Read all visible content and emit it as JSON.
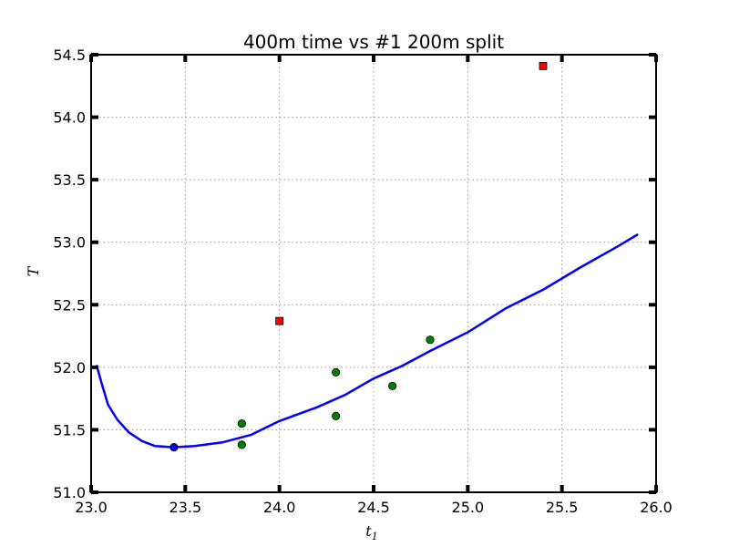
{
  "chart_data": {
    "type": "scatter",
    "title": "400m time vs #1 200m split",
    "xlabel": "t",
    "xlabel_subscript": "1",
    "ylabel": "T",
    "xlim": [
      23.0,
      26.0
    ],
    "ylim": [
      51.0,
      54.5
    ],
    "xticks": [
      23.0,
      23.5,
      24.0,
      24.5,
      25.0,
      25.5,
      26.0
    ],
    "xtick_labels": [
      "23.0",
      "23.5",
      "24.0",
      "24.5",
      "25.0",
      "25.5",
      "26.0"
    ],
    "yticks": [
      51.0,
      51.5,
      52.0,
      52.5,
      53.0,
      53.5,
      54.0,
      54.5
    ],
    "ytick_labels": [
      "51.0",
      "51.5",
      "52.0",
      "52.5",
      "53.0",
      "53.5",
      "54.0",
      "54.5"
    ],
    "grid": true,
    "series": [
      {
        "kind": "scatter",
        "marker": "circle",
        "color": "#008000",
        "points": [
          {
            "x": 23.8,
            "y": 51.55
          },
          {
            "x": 23.8,
            "y": 51.38
          },
          {
            "x": 24.3,
            "y": 51.96
          },
          {
            "x": 24.3,
            "y": 51.61
          },
          {
            "x": 24.6,
            "y": 51.85
          },
          {
            "x": 24.8,
            "y": 52.22
          }
        ]
      },
      {
        "kind": "scatter",
        "marker": "square",
        "color": "#ff0000",
        "points": [
          {
            "x": 24.0,
            "y": 52.37
          },
          {
            "x": 25.4,
            "y": 54.41
          }
        ]
      },
      {
        "kind": "scatter",
        "marker": "circle",
        "color": "#0000ff",
        "points": [
          {
            "x": 23.44,
            "y": 51.36
          }
        ]
      },
      {
        "kind": "line",
        "color": "#0000ff",
        "points": [
          {
            "x": 23.03,
            "y": 52.01
          },
          {
            "x": 23.06,
            "y": 51.85
          },
          {
            "x": 23.09,
            "y": 51.7
          },
          {
            "x": 23.14,
            "y": 51.58
          },
          {
            "x": 23.2,
            "y": 51.48
          },
          {
            "x": 23.27,
            "y": 51.41
          },
          {
            "x": 23.34,
            "y": 51.37
          },
          {
            "x": 23.44,
            "y": 51.36
          },
          {
            "x": 23.55,
            "y": 51.37
          },
          {
            "x": 23.7,
            "y": 51.4
          },
          {
            "x": 23.85,
            "y": 51.46
          },
          {
            "x": 24.0,
            "y": 51.57
          },
          {
            "x": 24.2,
            "y": 51.68
          },
          {
            "x": 24.35,
            "y": 51.78
          },
          {
            "x": 24.5,
            "y": 51.91
          },
          {
            "x": 24.65,
            "y": 52.01
          },
          {
            "x": 24.8,
            "y": 52.13
          },
          {
            "x": 25.0,
            "y": 52.28
          },
          {
            "x": 25.2,
            "y": 52.47
          },
          {
            "x": 25.4,
            "y": 52.62
          },
          {
            "x": 25.6,
            "y": 52.8
          },
          {
            "x": 25.8,
            "y": 52.97
          },
          {
            "x": 25.9,
            "y": 53.06
          }
        ]
      }
    ]
  }
}
